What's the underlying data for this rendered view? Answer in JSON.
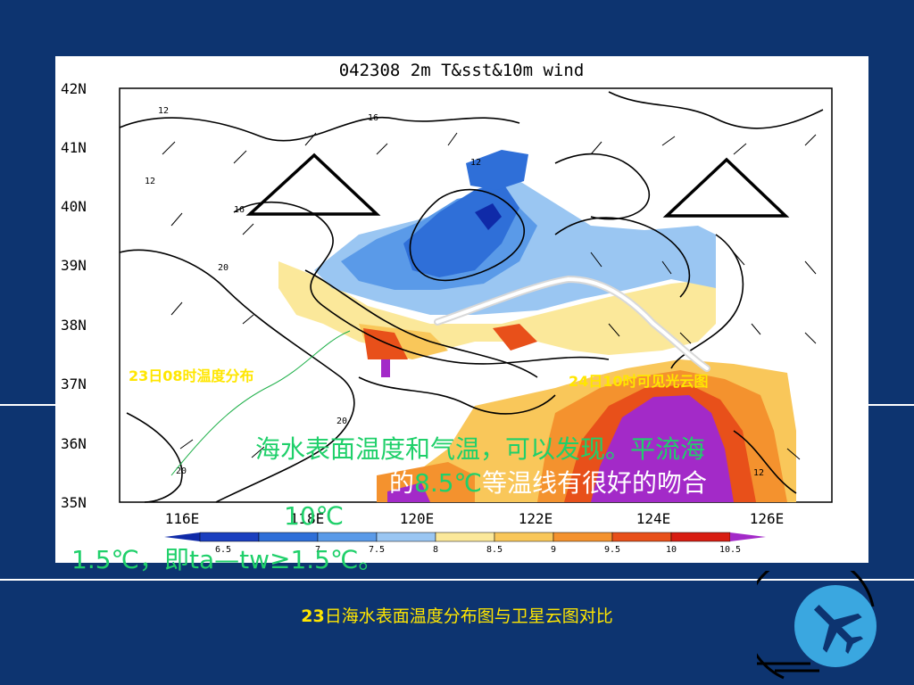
{
  "map": {
    "title": "042308  2m  T&sst&10m  wind",
    "lat_labels": [
      "42N",
      "41N",
      "40N",
      "39N",
      "38N",
      "37N",
      "36N",
      "35N"
    ],
    "lon_labels": [
      "116E",
      "118E",
      "120E",
      "122E",
      "124E",
      "126E"
    ],
    "contour_labels": [
      "12",
      "16",
      "12",
      "16",
      "12",
      "20",
      "20",
      "20",
      "12"
    ],
    "colorbar": {
      "ticks": [
        "6.5",
        "7",
        "7.5",
        "8",
        "8.5",
        "9",
        "9.5",
        "10",
        "10.5"
      ],
      "colors": [
        "#1b3fbf",
        "#2f6fd8",
        "#5a9ae8",
        "#9ac6f2",
        "#fbe89a",
        "#f9c75a",
        "#f4922e",
        "#e8501a",
        "#d81d12"
      ],
      "end_low": "#0f2aa8",
      "end_high": "#a32ac8"
    },
    "label_left": "23日08时温度分布",
    "label_right": "24日10时可见光云图",
    "label_color": "#ffe600"
  },
  "overlay": {
    "line1": "海水表面温度和气温，可以发现。平流海",
    "line2_green": "8.5℃",
    "line2_pre": "的",
    "line2_white": "等温线有很好的吻合",
    "line3": "10℃",
    "line4": "1.5℃，即ta—tw≥1.5℃。",
    "green": "#1fd06a"
  },
  "caption": {
    "bold": "23",
    "text": "日海水表面温度分布图与卫星云图对比"
  },
  "logo": {
    "icon": "airplane-icon"
  }
}
